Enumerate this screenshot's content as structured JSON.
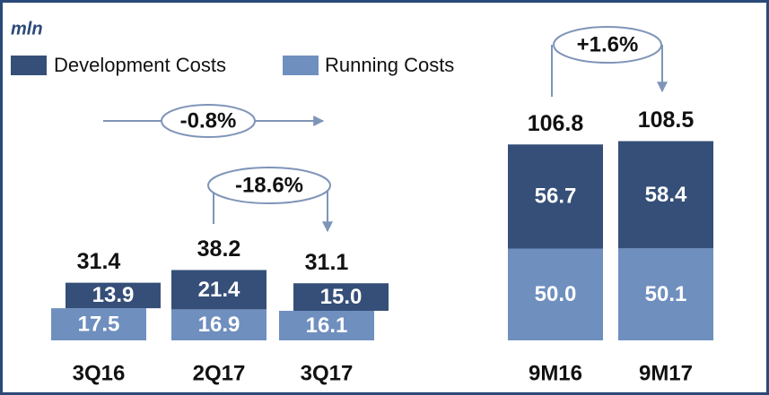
{
  "chart_data": {
    "type": "stacked_bar",
    "unit_label": "mln",
    "categories": [
      "3Q16",
      "2Q17",
      "3Q17",
      "9M16",
      "9M17"
    ],
    "series": [
      {
        "name": "Running Costs",
        "color": "#6f8fbf",
        "values": [
          17.5,
          16.9,
          16.1,
          50.0,
          50.1
        ],
        "value_labels": [
          "17.5",
          "16.9",
          "16.1",
          "50.0",
          "50.1"
        ]
      },
      {
        "name": "Development Costs",
        "color": "#354f78",
        "values": [
          13.9,
          21.4,
          15.0,
          56.7,
          58.4
        ],
        "value_labels": [
          "13.9",
          "21.4",
          "15.0",
          "56.7",
          "58.4"
        ]
      }
    ],
    "totals": [
      31.4,
      38.2,
      31.1,
      106.8,
      108.5
    ],
    "annotations": [
      "-0.8%",
      "-18.6%",
      "+1.6%"
    ]
  }
}
